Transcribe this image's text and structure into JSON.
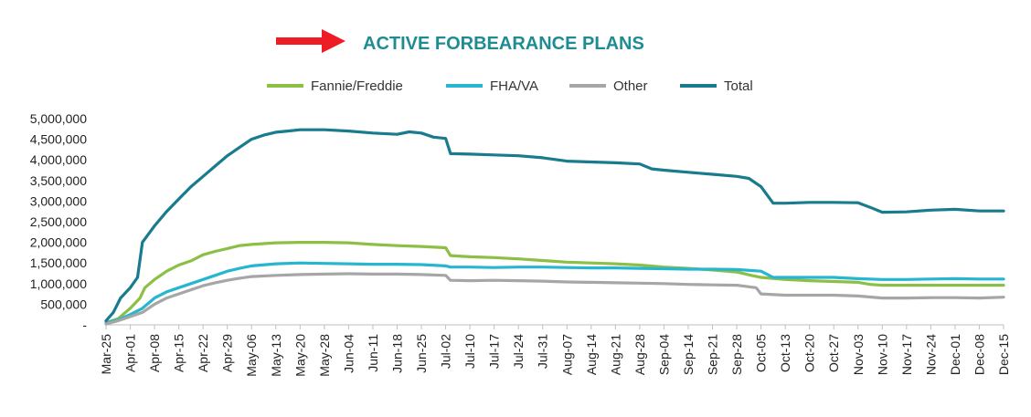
{
  "title": "ACTIVE FORBEARANCE PLANS",
  "colors": {
    "arrow": "#ee1c24",
    "title": "#1f8c94",
    "axis": "#bfbfbf"
  },
  "chart_data": {
    "type": "line",
    "title": "ACTIVE FORBEARANCE PLANS",
    "xlabel": "",
    "ylabel": "",
    "ylim": [
      0,
      5000000
    ],
    "yticks": [
      "-",
      "500,000",
      "1,000,000",
      "1,500,000",
      "2,000,000",
      "2,500,000",
      "3,000,000",
      "3,500,000",
      "4,000,000",
      "4,500,000",
      "5,000,000"
    ],
    "xticks": [
      "Mar-25",
      "Apr-01",
      "Apr-08",
      "Apr-15",
      "Apr-22",
      "Apr-29",
      "May-06",
      "May-13",
      "May-20",
      "May-28",
      "Jun-04",
      "Jun-11",
      "Jun-18",
      "Jun-25",
      "Jul-02",
      "Jul-10",
      "Jul-17",
      "Jul-24",
      "Jul-31",
      "Aug-07",
      "Aug-14",
      "Aug-21",
      "Aug-28",
      "Sep-04",
      "Sep-14",
      "Sep-21",
      "Sep-28",
      "Oct-05",
      "Oct-13",
      "Oct-20",
      "Oct-27",
      "Nov-03",
      "Nov-10",
      "Nov-17",
      "Nov-24",
      "Dec-01",
      "Dec-08",
      "Dec-15"
    ],
    "grid": false,
    "legend_position": "top",
    "series": [
      {
        "name": "Fannie/Freddie",
        "color": "#8cbf45",
        "points": [
          [
            0,
            50000
          ],
          [
            0.5,
            150000
          ],
          [
            1,
            400000
          ],
          [
            1.4,
            650000
          ],
          [
            1.6,
            900000
          ],
          [
            2,
            1100000
          ],
          [
            2.5,
            1300000
          ],
          [
            3,
            1450000
          ],
          [
            3.5,
            1550000
          ],
          [
            4,
            1700000
          ],
          [
            4.5,
            1780000
          ],
          [
            5,
            1850000
          ],
          [
            5.5,
            1920000
          ],
          [
            6,
            1950000
          ],
          [
            7,
            1990000
          ],
          [
            8,
            2000000
          ],
          [
            9,
            2000000
          ],
          [
            10,
            1990000
          ],
          [
            11,
            1950000
          ],
          [
            12,
            1920000
          ],
          [
            13,
            1900000
          ],
          [
            14,
            1870000
          ],
          [
            14.2,
            1680000
          ],
          [
            15,
            1650000
          ],
          [
            16,
            1630000
          ],
          [
            17,
            1600000
          ],
          [
            18,
            1560000
          ],
          [
            19,
            1520000
          ],
          [
            20,
            1500000
          ],
          [
            21,
            1480000
          ],
          [
            22,
            1450000
          ],
          [
            23,
            1400000
          ],
          [
            24,
            1370000
          ],
          [
            25,
            1330000
          ],
          [
            26,
            1280000
          ],
          [
            26.6,
            1200000
          ],
          [
            27,
            1150000
          ],
          [
            28,
            1100000
          ],
          [
            29,
            1070000
          ],
          [
            30,
            1050000
          ],
          [
            31,
            1030000
          ],
          [
            31.5,
            980000
          ],
          [
            32,
            960000
          ],
          [
            33,
            960000
          ],
          [
            34,
            960000
          ],
          [
            35,
            960000
          ],
          [
            36,
            960000
          ],
          [
            37,
            960000
          ]
        ]
      },
      {
        "name": "FHA/VA",
        "color": "#27b6d0",
        "points": [
          [
            0,
            50000
          ],
          [
            0.5,
            120000
          ],
          [
            1,
            250000
          ],
          [
            1.5,
            400000
          ],
          [
            2,
            650000
          ],
          [
            2.5,
            800000
          ],
          [
            3,
            900000
          ],
          [
            3.5,
            1000000
          ],
          [
            4,
            1100000
          ],
          [
            4.5,
            1200000
          ],
          [
            5,
            1300000
          ],
          [
            5.5,
            1370000
          ],
          [
            6,
            1430000
          ],
          [
            7,
            1480000
          ],
          [
            8,
            1500000
          ],
          [
            9,
            1490000
          ],
          [
            10,
            1480000
          ],
          [
            11,
            1470000
          ],
          [
            12,
            1470000
          ],
          [
            13,
            1460000
          ],
          [
            14,
            1430000
          ],
          [
            14.2,
            1400000
          ],
          [
            15,
            1400000
          ],
          [
            16,
            1390000
          ],
          [
            17,
            1400000
          ],
          [
            18,
            1400000
          ],
          [
            19,
            1390000
          ],
          [
            20,
            1380000
          ],
          [
            21,
            1380000
          ],
          [
            22,
            1370000
          ],
          [
            23,
            1360000
          ],
          [
            24,
            1350000
          ],
          [
            25,
            1350000
          ],
          [
            26,
            1340000
          ],
          [
            27,
            1300000
          ],
          [
            27.5,
            1150000
          ],
          [
            28,
            1150000
          ],
          [
            29,
            1150000
          ],
          [
            30,
            1150000
          ],
          [
            31,
            1120000
          ],
          [
            32,
            1100000
          ],
          [
            33,
            1100000
          ],
          [
            34,
            1110000
          ],
          [
            35,
            1120000
          ],
          [
            36,
            1110000
          ],
          [
            37,
            1110000
          ]
        ]
      },
      {
        "name": "Other",
        "color": "#a6a6a6",
        "points": [
          [
            0,
            20000
          ],
          [
            0.5,
            100000
          ],
          [
            1,
            200000
          ],
          [
            1.5,
            300000
          ],
          [
            2,
            500000
          ],
          [
            2.5,
            650000
          ],
          [
            3,
            750000
          ],
          [
            3.5,
            850000
          ],
          [
            4,
            950000
          ],
          [
            4.5,
            1020000
          ],
          [
            5,
            1080000
          ],
          [
            5.5,
            1130000
          ],
          [
            6,
            1170000
          ],
          [
            7,
            1200000
          ],
          [
            8,
            1220000
          ],
          [
            9,
            1230000
          ],
          [
            10,
            1240000
          ],
          [
            11,
            1230000
          ],
          [
            12,
            1230000
          ],
          [
            13,
            1220000
          ],
          [
            14,
            1200000
          ],
          [
            14.2,
            1080000
          ],
          [
            15,
            1070000
          ],
          [
            16,
            1080000
          ],
          [
            17,
            1070000
          ],
          [
            18,
            1060000
          ],
          [
            19,
            1040000
          ],
          [
            20,
            1030000
          ],
          [
            21,
            1020000
          ],
          [
            22,
            1010000
          ],
          [
            23,
            1000000
          ],
          [
            24,
            980000
          ],
          [
            25,
            970000
          ],
          [
            26,
            960000
          ],
          [
            26.8,
            900000
          ],
          [
            27,
            750000
          ],
          [
            28,
            720000
          ],
          [
            29,
            720000
          ],
          [
            30,
            720000
          ],
          [
            31,
            700000
          ],
          [
            32,
            650000
          ],
          [
            33,
            650000
          ],
          [
            34,
            660000
          ],
          [
            35,
            660000
          ],
          [
            36,
            650000
          ],
          [
            37,
            670000
          ]
        ]
      },
      {
        "name": "Total",
        "color": "#187b8e",
        "points": [
          [
            0,
            100000
          ],
          [
            0.3,
            300000
          ],
          [
            0.6,
            650000
          ],
          [
            1,
            900000
          ],
          [
            1.3,
            1150000
          ],
          [
            1.5,
            2000000
          ],
          [
            2,
            2400000
          ],
          [
            2.5,
            2750000
          ],
          [
            3,
            3050000
          ],
          [
            3.5,
            3350000
          ],
          [
            4,
            3600000
          ],
          [
            4.5,
            3850000
          ],
          [
            5,
            4100000
          ],
          [
            5.5,
            4300000
          ],
          [
            6,
            4500000
          ],
          [
            6.5,
            4600000
          ],
          [
            7,
            4670000
          ],
          [
            7.5,
            4700000
          ],
          [
            8,
            4730000
          ],
          [
            9,
            4730000
          ],
          [
            10,
            4700000
          ],
          [
            11,
            4650000
          ],
          [
            12,
            4620000
          ],
          [
            12.5,
            4680000
          ],
          [
            13,
            4650000
          ],
          [
            13.5,
            4550000
          ],
          [
            14,
            4520000
          ],
          [
            14.2,
            4150000
          ],
          [
            15,
            4140000
          ],
          [
            16,
            4120000
          ],
          [
            17,
            4100000
          ],
          [
            18,
            4050000
          ],
          [
            19,
            3970000
          ],
          [
            20,
            3950000
          ],
          [
            21,
            3930000
          ],
          [
            22,
            3900000
          ],
          [
            22.5,
            3780000
          ],
          [
            23,
            3750000
          ],
          [
            24,
            3700000
          ],
          [
            25,
            3650000
          ],
          [
            26,
            3600000
          ],
          [
            26.5,
            3550000
          ],
          [
            27,
            3350000
          ],
          [
            27.5,
            2950000
          ],
          [
            28,
            2950000
          ],
          [
            29,
            2970000
          ],
          [
            30,
            2970000
          ],
          [
            31,
            2960000
          ],
          [
            31.5,
            2850000
          ],
          [
            32,
            2730000
          ],
          [
            33,
            2740000
          ],
          [
            34,
            2780000
          ],
          [
            35,
            2800000
          ],
          [
            36,
            2760000
          ],
          [
            37,
            2760000
          ]
        ]
      }
    ]
  }
}
